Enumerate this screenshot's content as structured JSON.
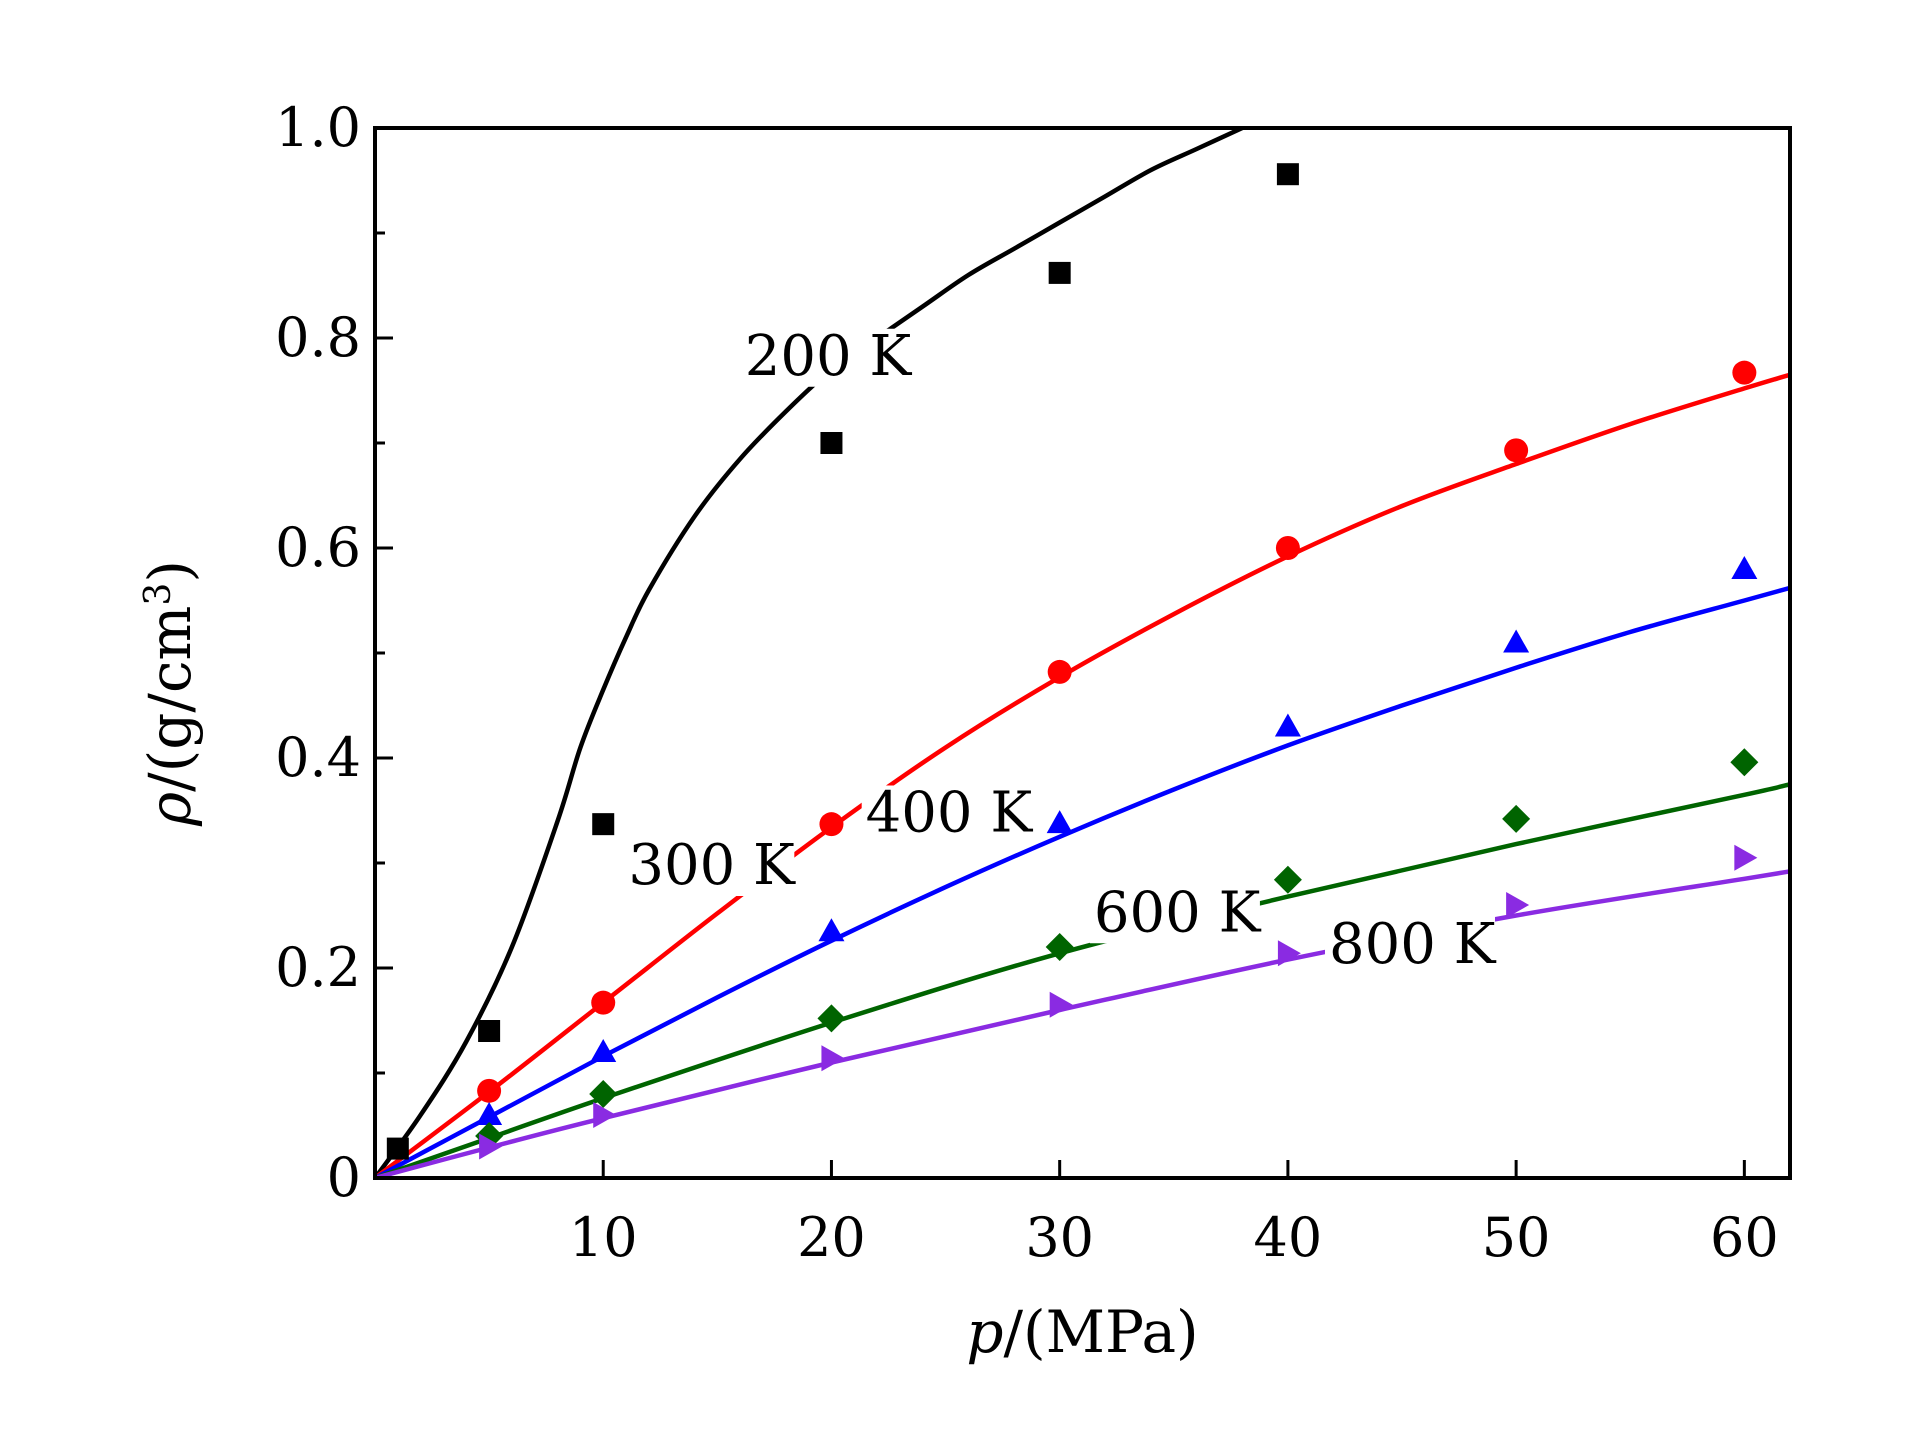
{
  "chart_data": {
    "type": "scatter",
    "title": "",
    "xlabel": {
      "symbol": "p",
      "unit": "/(MPa)"
    },
    "ylabel": {
      "symbol": "ρ",
      "unit_prefix": "/(g/cm",
      "unit_sup": "3",
      "unit_suffix": ")"
    },
    "xlim": [
      0,
      62
    ],
    "ylim": [
      0,
      1.0
    ],
    "xticks": [
      10,
      20,
      30,
      40,
      50,
      60
    ],
    "xtick_labels": [
      "10",
      "20",
      "30",
      "40",
      "50",
      "60"
    ],
    "yticks": [
      0,
      0.2,
      0.4,
      0.6,
      0.8,
      1.0
    ],
    "ytick_labels": [
      "0",
      "0.2",
      "0.4",
      "0.6",
      "0.8",
      "1.0"
    ],
    "y_minor_ticks": [
      0.1,
      0.3,
      0.5,
      0.7,
      0.9
    ],
    "grid": false,
    "series": [
      {
        "name": "200 K",
        "color": "#000000",
        "marker": "square",
        "x": [
          1,
          5,
          10,
          20,
          30,
          40
        ],
        "y": [
          0.028,
          0.14,
          0.337,
          0.7,
          0.862,
          0.956
        ],
        "fit_x": [
          0,
          2,
          4,
          6,
          8,
          9,
          10,
          11,
          12,
          14,
          16,
          18,
          20,
          22,
          24,
          26,
          28,
          30,
          32,
          34,
          36,
          38
        ],
        "fit_y": [
          0,
          0.06,
          0.13,
          0.22,
          0.34,
          0.41,
          0.465,
          0.515,
          0.56,
          0.63,
          0.685,
          0.73,
          0.77,
          0.8,
          0.83,
          0.86,
          0.885,
          0.91,
          0.935,
          0.96,
          0.98,
          1.0
        ]
      },
      {
        "name": "300 K",
        "color": "#ff0000",
        "marker": "circle",
        "x": [
          5,
          10,
          20,
          30,
          40,
          50,
          60
        ],
        "y": [
          0.083,
          0.167,
          0.337,
          0.482,
          0.6,
          0.693,
          0.767
        ],
        "fit_x": [
          0,
          5,
          10,
          15,
          20,
          25,
          30,
          35,
          40,
          45,
          50,
          55,
          60,
          62
        ],
        "fit_y": [
          0,
          0.082,
          0.167,
          0.252,
          0.334,
          0.41,
          0.477,
          0.537,
          0.592,
          0.64,
          0.68,
          0.718,
          0.752,
          0.765
        ]
      },
      {
        "name": "400 K",
        "color": "#0000ff",
        "marker": "triangle-up",
        "x": [
          5,
          10,
          20,
          30,
          40,
          50,
          60
        ],
        "y": [
          0.06,
          0.12,
          0.235,
          0.338,
          0.43,
          0.51,
          0.58
        ],
        "fit_x": [
          0,
          5,
          10,
          15,
          20,
          25,
          30,
          35,
          40,
          45,
          50,
          55,
          60,
          62
        ],
        "fit_y": [
          0,
          0.058,
          0.116,
          0.172,
          0.226,
          0.277,
          0.325,
          0.37,
          0.412,
          0.45,
          0.486,
          0.52,
          0.55,
          0.562
        ]
      },
      {
        "name": "600 K",
        "color": "#006400",
        "marker": "diamond",
        "x": [
          5,
          10,
          20,
          30,
          40,
          50,
          60
        ],
        "y": [
          0.04,
          0.08,
          0.152,
          0.22,
          0.284,
          0.342,
          0.396
        ],
        "fit_x": [
          0,
          5,
          10,
          20,
          30,
          40,
          50,
          60,
          62
        ],
        "fit_y": [
          0,
          0.038,
          0.076,
          0.148,
          0.214,
          0.268,
          0.318,
          0.365,
          0.375
        ]
      },
      {
        "name": "800 K",
        "color": "#8a2be2",
        "marker": "triangle-right",
        "x": [
          5,
          10,
          20,
          30,
          40,
          50,
          60
        ],
        "y": [
          0.03,
          0.06,
          0.114,
          0.165,
          0.214,
          0.26,
          0.305
        ],
        "fit_x": [
          0,
          5,
          10,
          20,
          30,
          40,
          50,
          60,
          62
        ],
        "fit_y": [
          0,
          0.029,
          0.057,
          0.11,
          0.16,
          0.208,
          0.25,
          0.285,
          0.292
        ]
      }
    ]
  }
}
